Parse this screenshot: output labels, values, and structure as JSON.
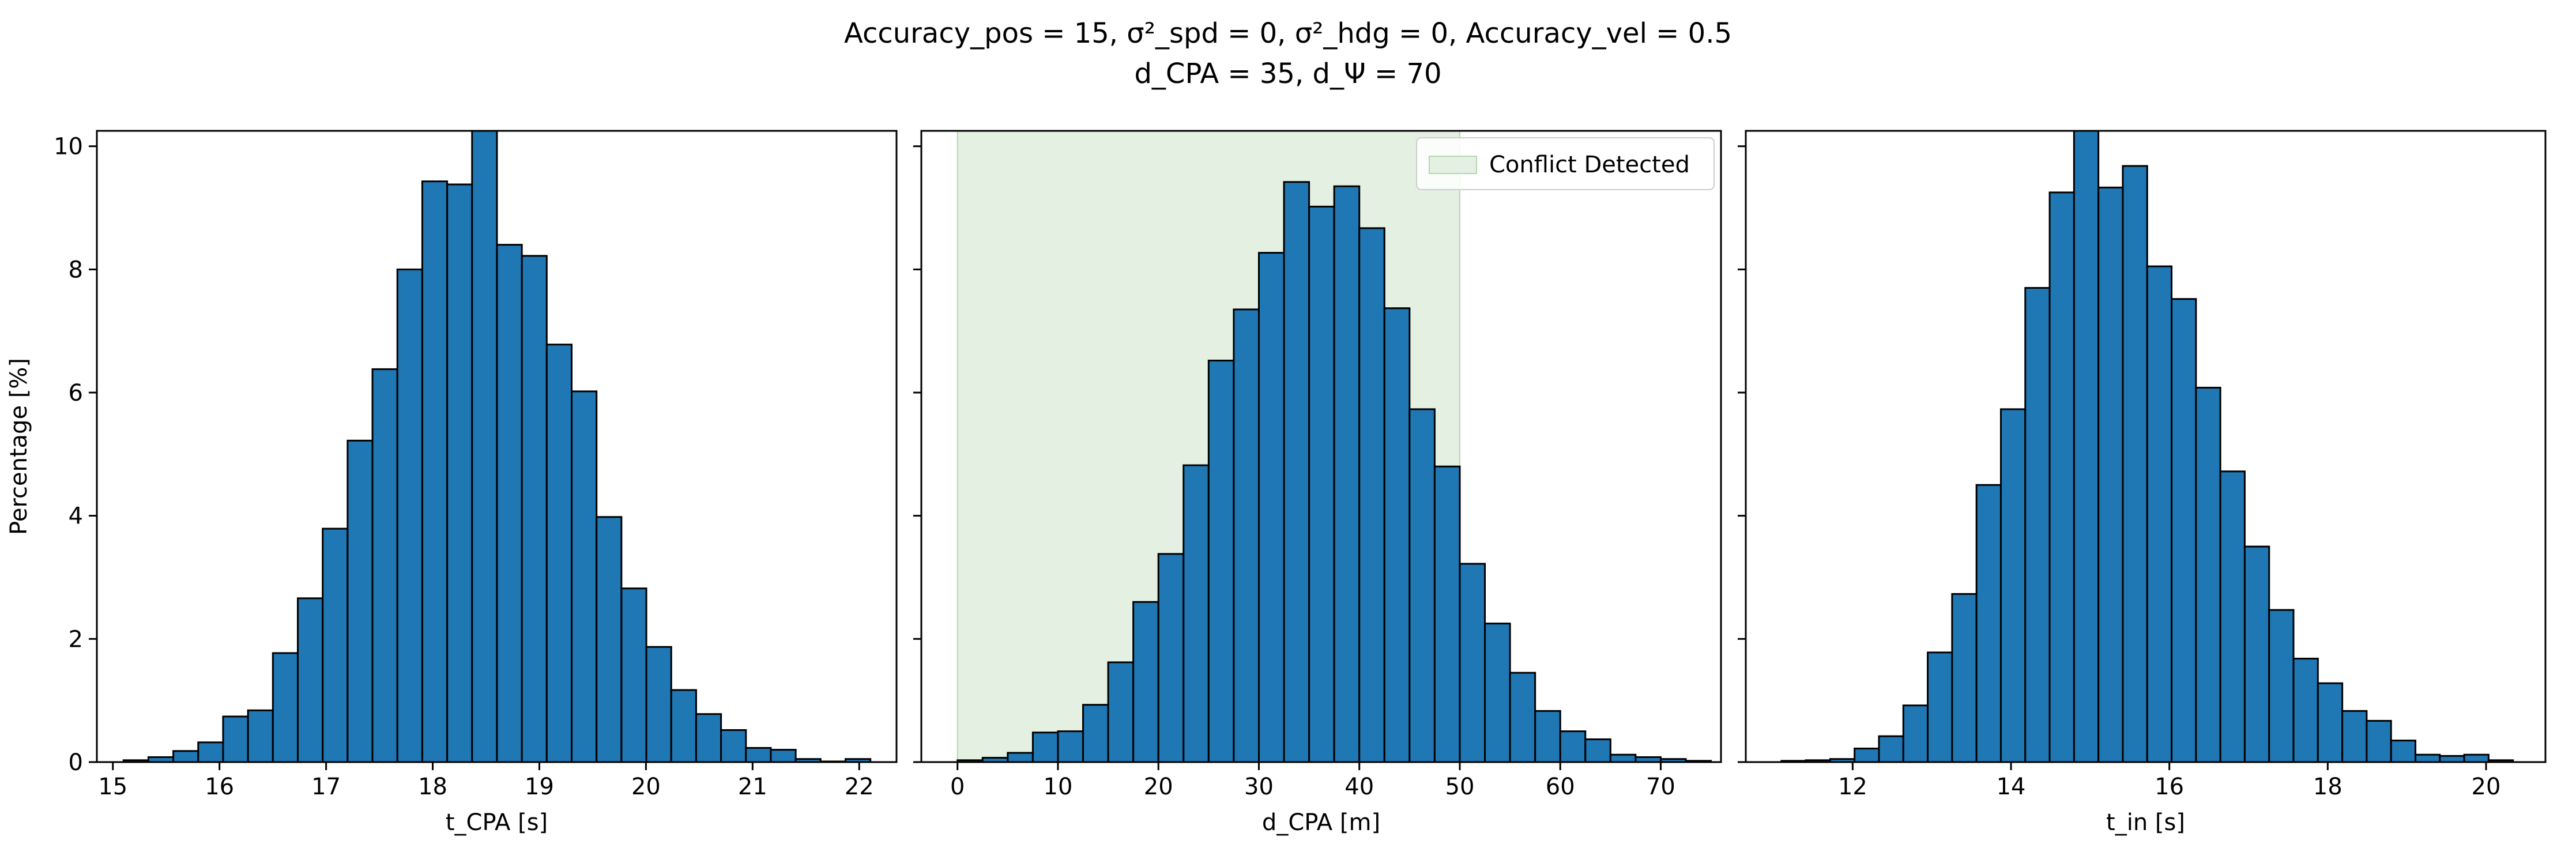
{
  "figure_title": {
    "line1": "Accuracy_pos = 15, σ²_spd = 0, σ²_hdg = 0, Accuracy_vel = 0.5",
    "line2": "d_CPA = 35, d_Ψ = 70"
  },
  "colors": {
    "bar_fill": "#1f77b4",
    "bar_edge": "#000000",
    "conflict_region": "#e4f0e2",
    "conflict_edge": "#b5d7b0"
  },
  "chart_data": [
    {
      "type": "bar",
      "subtype": "histogram",
      "xlabel": "t_CPA [s]",
      "ylabel": "Percentage [%]",
      "xlim": [
        14.85,
        22.35
      ],
      "ylim": [
        0,
        10.25
      ],
      "xticks": [
        15,
        16,
        17,
        18,
        19,
        20,
        21,
        22
      ],
      "yticks": [
        0,
        2,
        4,
        6,
        8,
        10
      ],
      "bin_start": 15.1,
      "bin_width": 0.2335,
      "values": [
        0.03,
        0.08,
        0.18,
        0.32,
        0.74,
        0.84,
        1.77,
        2.66,
        3.79,
        5.22,
        6.38,
        8.0,
        9.43,
        9.38,
        10.25,
        8.4,
        8.22,
        6.78,
        6.02,
        3.98,
        2.82,
        1.87,
        1.17,
        0.78,
        0.52,
        0.23,
        0.2,
        0.05,
        0.01,
        0.05
      ]
    },
    {
      "type": "bar",
      "subtype": "histogram",
      "xlabel": "d_CPA [m]",
      "ylabel": "",
      "xlim": [
        -3.6,
        76.0
      ],
      "ylim": [
        0,
        10.25
      ],
      "xticks": [
        0,
        10,
        20,
        30,
        40,
        50,
        60,
        70
      ],
      "yticks": [
        0,
        2,
        4,
        6,
        8,
        10
      ],
      "bin_start": 0.0,
      "bin_width": 2.5,
      "values": [
        0.03,
        0.07,
        0.15,
        0.48,
        0.5,
        0.93,
        1.62,
        2.6,
        3.38,
        4.82,
        6.52,
        7.35,
        8.27,
        9.42,
        9.02,
        9.35,
        8.67,
        7.37,
        5.73,
        4.8,
        3.22,
        2.25,
        1.45,
        0.83,
        0.5,
        0.37,
        0.12,
        0.08,
        0.05,
        0.02
      ],
      "shaded_region": {
        "x": [
          0,
          50
        ],
        "label": "Conflict Detected"
      },
      "legend": {
        "location": "upper right",
        "entries": [
          "Conflict Detected"
        ]
      }
    },
    {
      "type": "bar",
      "subtype": "histogram",
      "xlabel": "t_in [s]",
      "ylabel": "",
      "xlim": [
        10.65,
        20.75
      ],
      "ylim": [
        0,
        10.25
      ],
      "xticks": [
        12,
        14,
        16,
        18,
        20
      ],
      "yticks": [
        0,
        2,
        4,
        6,
        8,
        10
      ],
      "bin_start": 11.1,
      "bin_width": 0.308,
      "values": [
        0.02,
        0.03,
        0.05,
        0.22,
        0.42,
        0.92,
        1.78,
        2.73,
        4.5,
        5.73,
        7.7,
        9.25,
        10.25,
        9.33,
        9.68,
        8.05,
        7.52,
        6.08,
        4.72,
        3.5,
        2.47,
        1.68,
        1.28,
        0.83,
        0.67,
        0.35,
        0.12,
        0.1,
        0.12,
        0.03
      ]
    }
  ]
}
